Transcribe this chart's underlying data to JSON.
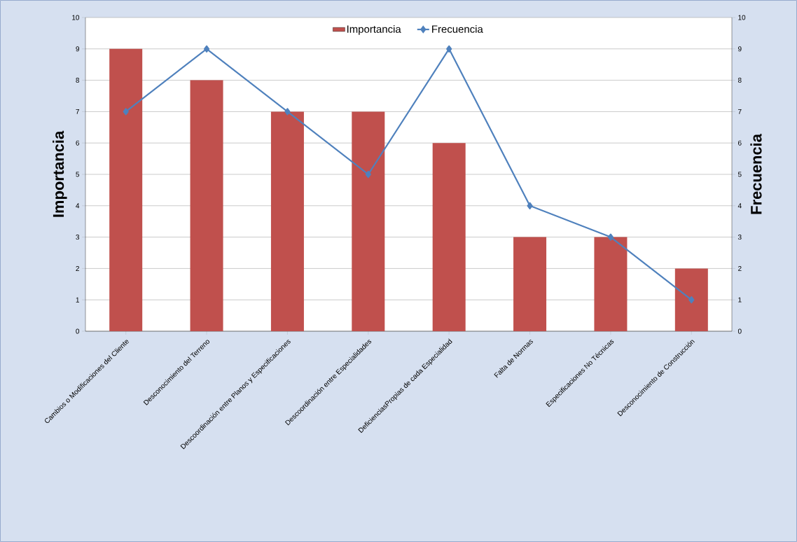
{
  "chart_data": {
    "type": "bar",
    "ylabel": "Importancia",
    "y2label": "Frecuencia",
    "categories": [
      "Cambios o Modificaciones del Cliente",
      "Desconocimiento del Terreno",
      "Descoordinación entre Planos y Especificaciones",
      "Descoordinación entre Especialidades",
      "DeficienciasPropias de cada Especialidad",
      "Falta de Normas",
      "Especificaciones No Técnicas",
      "Desconocimiento de Construcción"
    ],
    "series": [
      {
        "name": "Importancia",
        "color": "#c0504d",
        "values": [
          9,
          8,
          7,
          7,
          6,
          3,
          3,
          2
        ]
      },
      {
        "name": "Frecuencia",
        "type": "line",
        "axis": "y2",
        "marker": "diamond",
        "color": "#4f81bd",
        "values": [
          7,
          9,
          7,
          5,
          9,
          4,
          3,
          1
        ]
      }
    ],
    "ylim": [
      0,
      10
    ],
    "yticks": [
      0,
      1,
      2,
      3,
      4,
      5,
      6,
      7,
      8,
      9,
      10
    ],
    "y2lim": [
      0,
      10
    ],
    "y2ticks": [
      0,
      1,
      2,
      3,
      4,
      5,
      6,
      7,
      8,
      9,
      10
    ],
    "grid": "y",
    "legend": "top"
  }
}
